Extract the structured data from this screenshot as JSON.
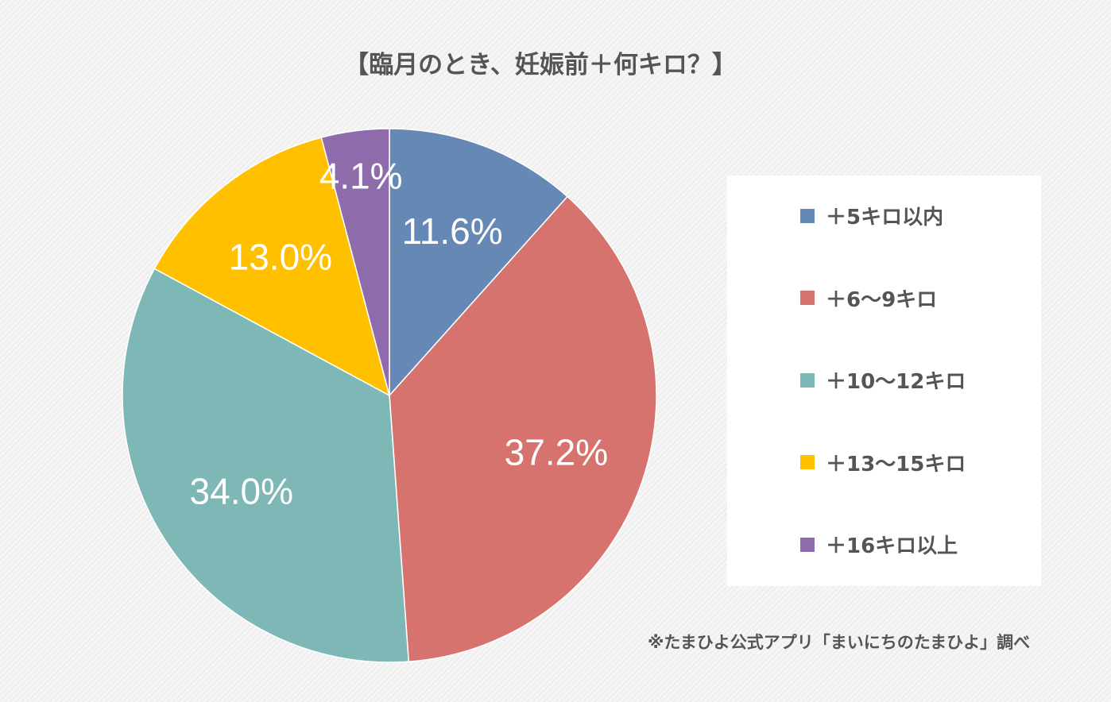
{
  "chart_data": {
    "type": "pie",
    "title": "【臨月のとき、妊娠前＋何キロ？】",
    "start_angle": "top, clockwise",
    "legend_placement": "right",
    "slices": [
      {
        "label": "＋5キロ以内",
        "value": 11.6,
        "data_label": "11.6%",
        "color": "#6589B4"
      },
      {
        "label": "＋6〜9キロ",
        "value": 37.2,
        "data_label": "37.2%",
        "color": "#D6736E"
      },
      {
        "label": "＋10〜12キロ",
        "value": 34.0,
        "data_label": "34.0%",
        "color": "#7EB8B6"
      },
      {
        "label": "＋13〜15キロ",
        "value": 13.0,
        "data_label": "13.0%",
        "color": "#FFC000"
      },
      {
        "label": "＋16キロ以上",
        "value": 4.1,
        "data_label": "4.1%",
        "color": "#8E6BAB"
      }
    ],
    "source_note": "※たまひよ公式アプリ「まいにちのたまひよ」調べ"
  }
}
